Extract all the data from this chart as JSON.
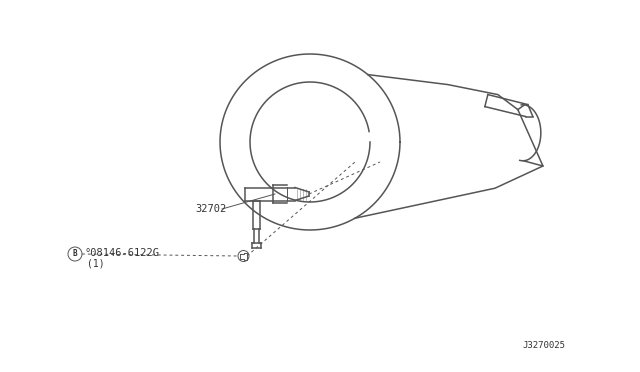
{
  "bg_color": "#ffffff",
  "line_color": "#555555",
  "text_color": "#333333",
  "diagram_id": "J3270025",
  "label_bolt": "°08146-6122G",
  "label_bolt_sub": "(1)",
  "label_part": "32702",
  "fig_width": 6.4,
  "fig_height": 3.72,
  "dpi": 100
}
